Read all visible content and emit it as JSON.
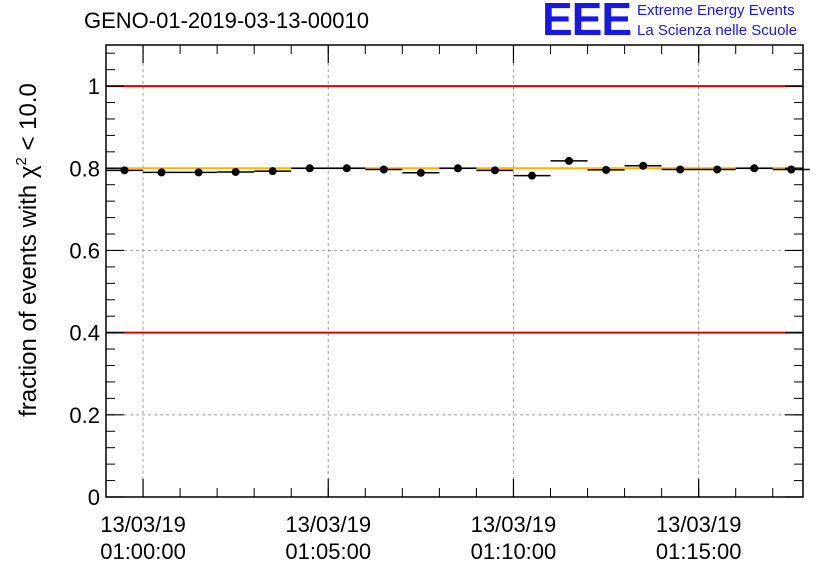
{
  "header": {
    "run_id": "GENO-01-2019-03-13-00010"
  },
  "logo": {
    "mark": "EEE",
    "line1": "Extreme Energy Events",
    "line2": "La Scienza nelle Scuole",
    "color": "#1818e6"
  },
  "chart_data": {
    "type": "scatter",
    "ylabel": "fraction of events with χ² < 10.0",
    "ylim": [
      0,
      1.1
    ],
    "yticks": [
      0,
      0.2,
      0.4,
      0.6,
      0.8,
      1
    ],
    "ytick_labels": [
      "0",
      "0.2",
      "0.4",
      "0.6",
      "0.8",
      "1"
    ],
    "xlim": [
      "01:00:00",
      "01:18:49"
    ],
    "xticks": [
      {
        "x": "01:01:00",
        "date": "13/03/19",
        "time": "01:00:00"
      },
      {
        "x": "01:06:00",
        "date": "13/03/19",
        "time": "01:05:00"
      },
      {
        "x": "01:11:00",
        "date": "13/03/19",
        "time": "01:10:00"
      },
      {
        "x": "01:16:00",
        "date": "13/03/19",
        "time": "01:15:00"
      }
    ],
    "grid": true,
    "points": [
      {
        "x": "01:00:30",
        "y": 0.795
      },
      {
        "x": "01:01:30",
        "y": 0.79
      },
      {
        "x": "01:02:30",
        "y": 0.79
      },
      {
        "x": "01:03:30",
        "y": 0.791
      },
      {
        "x": "01:04:30",
        "y": 0.793
      },
      {
        "x": "01:05:30",
        "y": 0.8
      },
      {
        "x": "01:06:30",
        "y": 0.8
      },
      {
        "x": "01:07:30",
        "y": 0.797
      },
      {
        "x": "01:08:30",
        "y": 0.789
      },
      {
        "x": "01:09:30",
        "y": 0.8
      },
      {
        "x": "01:10:30",
        "y": 0.795
      },
      {
        "x": "01:11:30",
        "y": 0.782
      },
      {
        "x": "01:12:30",
        "y": 0.818
      },
      {
        "x": "01:13:30",
        "y": 0.796
      },
      {
        "x": "01:14:30",
        "y": 0.806
      },
      {
        "x": "01:15:30",
        "y": 0.797
      },
      {
        "x": "01:16:30",
        "y": 0.797
      },
      {
        "x": "01:17:30",
        "y": 0.8
      },
      {
        "x": "01:18:30",
        "y": 0.797
      }
    ],
    "bin_width_seconds": 60,
    "reference_lines": [
      {
        "y": 1.0,
        "color": "#e00000"
      },
      {
        "y": 0.4,
        "color": "#e00000"
      },
      {
        "y": 0.8,
        "color": "#ffb400"
      }
    ],
    "marker_color": "#000000",
    "grid_color": "#a0a0a0"
  }
}
